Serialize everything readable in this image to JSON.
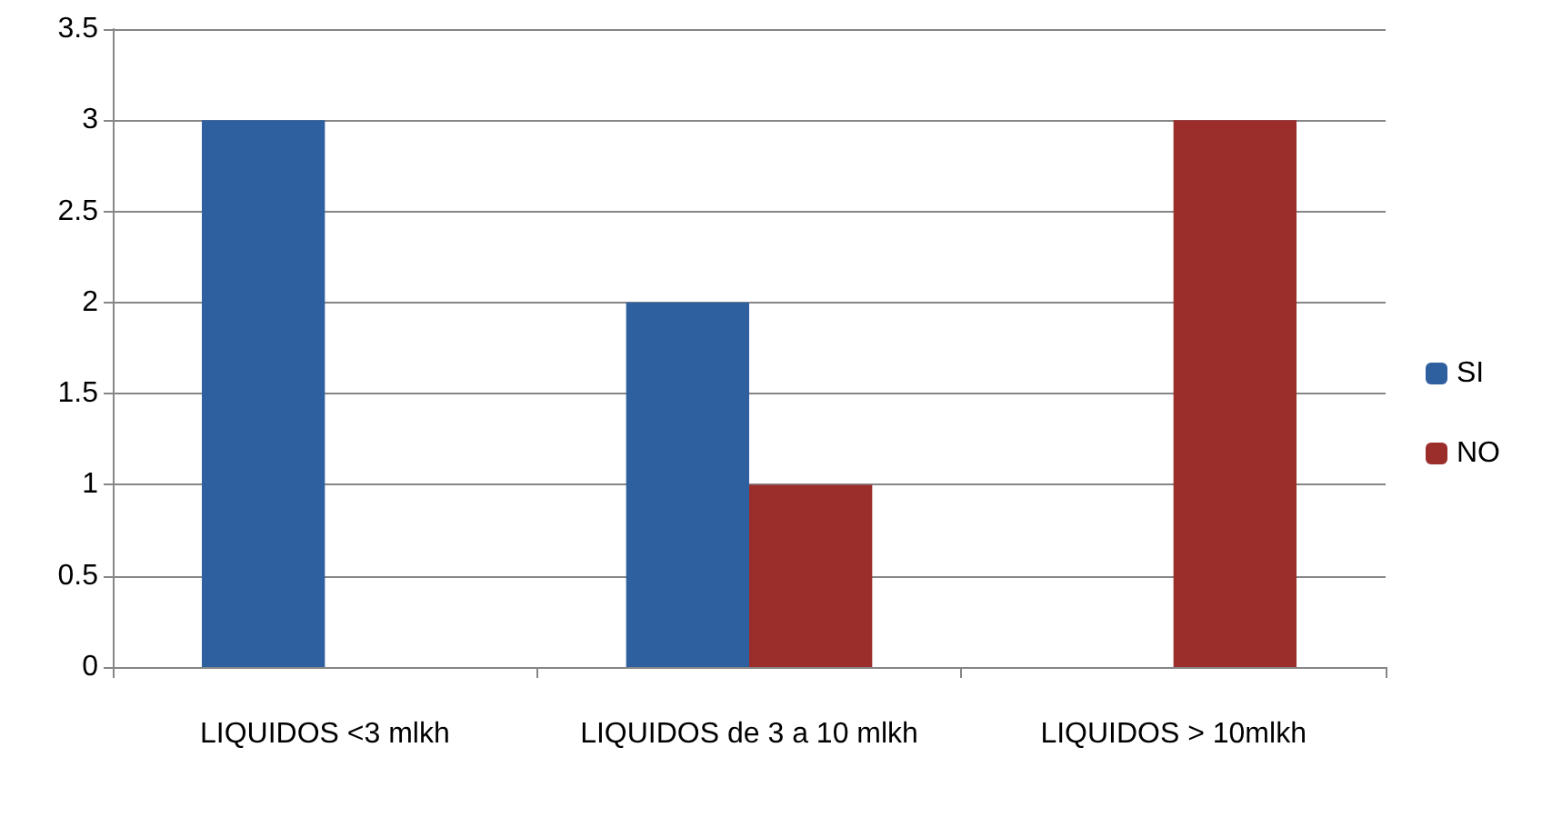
{
  "chart_data": {
    "type": "bar",
    "categories": [
      "LIQUIDOS <3 mlkh",
      "LIQUIDOS de 3 a 10 mlkh",
      "LIQUIDOS > 10mlkh"
    ],
    "series": [
      {
        "name": "SI",
        "color": "#2e5f9e",
        "values": [
          3,
          2,
          0
        ]
      },
      {
        "name": "NO",
        "color": "#9b2d2b",
        "values": [
          0,
          1,
          3
        ]
      }
    ],
    "ylim": [
      0,
      3.5
    ],
    "yticks": [
      0,
      0.5,
      1,
      1.5,
      2,
      2.5,
      3,
      3.5
    ],
    "grid": "y",
    "legend": "right"
  }
}
